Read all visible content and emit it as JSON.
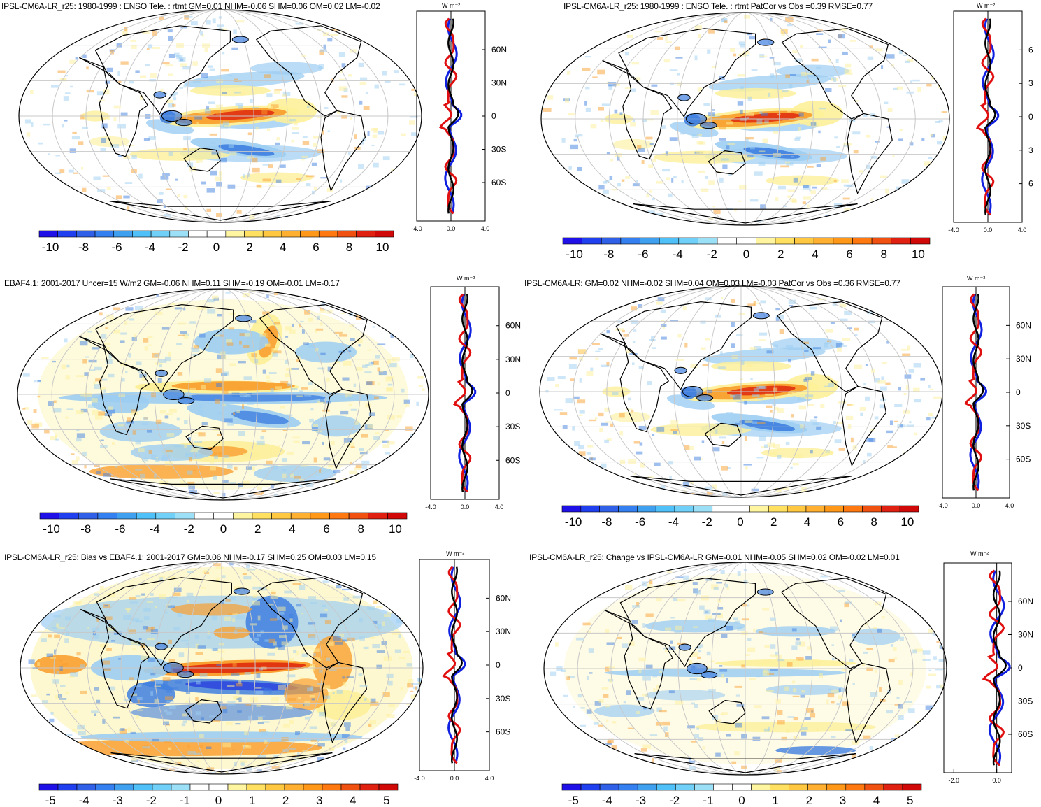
{
  "colors": {
    "blue_strong": "#2233dd",
    "blue_mid": "#3f7fe0",
    "blue_light": "#9ccdf2",
    "yellow": "#fdf09a",
    "orange": "#f9a030",
    "red": "#e03010",
    "land": "#000000",
    "grid": "#c8c8c8",
    "profile_model": "#e01010",
    "profile_obs": "#1020e0",
    "profile_mean": "#000000"
  },
  "unit_label": "W m⁻²",
  "lat_ticks": [
    "60N",
    "30N",
    "0",
    "30S",
    "60S"
  ],
  "lat_ticks_clipped": [
    "6",
    "3",
    "0",
    "3",
    "6"
  ],
  "colorbar_10": {
    "colors": [
      "#2010e8",
      "#2040f0",
      "#3060e8",
      "#3580f0",
      "#40a0f0",
      "#50c0f8",
      "#70d0f8",
      "#9ce0f8",
      "#ffffff",
      "#ffffff",
      "#fff4a0",
      "#ffe060",
      "#ffc840",
      "#ffb030",
      "#ff9818",
      "#ff7810",
      "#f05010",
      "#e02010",
      "#d00808"
    ],
    "labels": [
      "-10",
      "-8",
      "-6",
      "-4",
      "-2",
      "0",
      "2",
      "4",
      "6",
      "8",
      "10"
    ]
  },
  "colorbar_5": {
    "colors": [
      "#2010e8",
      "#2040f0",
      "#3060e8",
      "#3580f0",
      "#40a0f0",
      "#50c0f8",
      "#70d0f8",
      "#9ce0f8",
      "#ffffff",
      "#ffffff",
      "#fff4a0",
      "#ffe060",
      "#ffc840",
      "#ffb030",
      "#ff9818",
      "#ff7810",
      "#f05010",
      "#e02010",
      "#d00808"
    ],
    "labels": [
      "-5",
      "-4",
      "-3",
      "-2",
      "-1",
      "0",
      "1",
      "2",
      "3",
      "4",
      "5"
    ]
  },
  "panels": [
    {
      "title": "IPSL-CM6A-LR_r25: 1980-1999 : ENSO Tele. : rtmt GM=0.01 NHM=-0.06 SHM=0.06 OM=0.02 LM=-0.02",
      "xticks": [
        "-4.0",
        "0.0",
        "4.0"
      ],
      "bar": "colorbar_10",
      "pattern": 1
    },
    {
      "title": "IPSL-CM6A-LR_r25: 1980-1999 : ENSO Tele. : rtmt PatCor vs Obs =0.39 RMSE=0.77",
      "xticks": [
        "-4.0",
        "0.0",
        "4.0"
      ],
      "bar": "colorbar_10",
      "pattern": 1
    },
    {
      "title": "EBAF4.1: 2001-2017 Uncer=15 W/m2 GM=-0.06 NHM=0.11 SHM=-0.19 OM=-0.01 LM=-0.17",
      "xticks": [
        "-4.0",
        "0.0",
        "4.0"
      ],
      "bar": "colorbar_10",
      "pattern": 2
    },
    {
      "title": "IPSL-CM6A-LR: GM=0.02 NHM=-0.02 SHM=0.04 OM=0.03 LM=-0.03 PatCor vs Obs =0.36 RMSE=0.77",
      "xticks": [
        "-4.0",
        "0.0",
        "4.0"
      ],
      "bar": "colorbar_10",
      "pattern": 1
    },
    {
      "title": "IPSL-CM6A-LR_r25: Bias vs EBAF4.1: 2001-2017 GM=0.06 NHM=-0.17 SHM=0.25 OM=0.03 LM=0.15",
      "xticks": [
        "-4.0",
        "0.0",
        "4.0"
      ],
      "bar": "colorbar_5",
      "pattern": 3
    },
    {
      "title": "IPSL-CM6A-LR_r25: Change vs IPSL-CM6A-LR GM=-0.01 NHM=-0.05 SHM=0.02 OM=-0.02 LM=0.01",
      "xticks": [
        "-2.0",
        "0.0"
      ],
      "bar": "colorbar_5",
      "pattern": 4
    }
  ]
}
